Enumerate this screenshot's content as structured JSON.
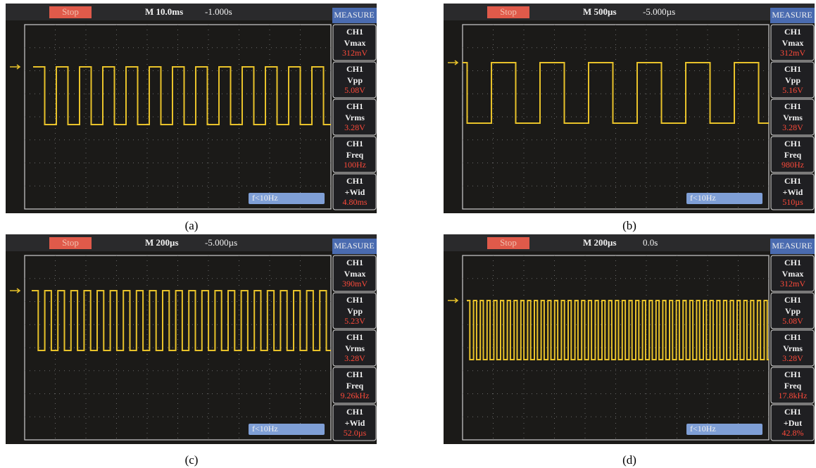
{
  "panels": [
    {
      "status": "Stop",
      "timebase": "M 10.0ms",
      "offset": "-1.000s",
      "header": "MEASURE",
      "measurements": [
        {
          "channel": "CH1",
          "name": "Vmax",
          "value": "312mV"
        },
        {
          "channel": "CH1",
          "name": "Vpp",
          "value": "5.08V"
        },
        {
          "channel": "CH1",
          "name": "Vrms",
          "value": "3.28V"
        },
        {
          "channel": "CH1",
          "name": "Freq",
          "value": "100Hz"
        },
        {
          "channel": "CH1",
          "name": "+Wid",
          "value": "4.80ms"
        }
      ],
      "trigger": "f<10Hz",
      "caption": "(a)"
    },
    {
      "status": "Stop",
      "timebase": "M 500µs",
      "offset": "-5.000µs",
      "header": "MEASURE",
      "measurements": [
        {
          "channel": "CH1",
          "name": "Vmax",
          "value": "312mV"
        },
        {
          "channel": "CH1",
          "name": "Vpp",
          "value": "5.16V"
        },
        {
          "channel": "CH1",
          "name": "Vrms",
          "value": "3.28V"
        },
        {
          "channel": "CH1",
          "name": "Freq",
          "value": "980Hz"
        },
        {
          "channel": "CH1",
          "name": "+Wid",
          "value": "510µs"
        }
      ],
      "trigger": "f<10Hz",
      "caption": "(b)"
    },
    {
      "status": "Stop",
      "timebase": "M 200µs",
      "offset": "-5.000µs",
      "header": "MEASURE",
      "measurements": [
        {
          "channel": "CH1",
          "name": "Vmax",
          "value": "390mV"
        },
        {
          "channel": "CH1",
          "name": "Vpp",
          "value": "5.23V"
        },
        {
          "channel": "CH1",
          "name": "Vrms",
          "value": "3.28V"
        },
        {
          "channel": "CH1",
          "name": "Freq",
          "value": "9.26kHz"
        },
        {
          "channel": "CH1",
          "name": "+Wid",
          "value": "52.0µs"
        }
      ],
      "trigger": "f<10Hz",
      "caption": "(c)"
    },
    {
      "status": "Stop",
      "timebase": "M 200µs",
      "offset": "0.0s",
      "header": "MEASURE",
      "measurements": [
        {
          "channel": "CH1",
          "name": "Vmax",
          "value": "312mV"
        },
        {
          "channel": "CH1",
          "name": "Vpp",
          "value": "5.08V"
        },
        {
          "channel": "CH1",
          "name": "Vrms",
          "value": "3.28V"
        },
        {
          "channel": "CH1",
          "name": "Freq",
          "value": "17.8kHz"
        },
        {
          "channel": "CH1",
          "name": "+Dut",
          "value": "42.8%"
        }
      ],
      "trigger": "f<10Hz",
      "caption": "(d)"
    }
  ]
}
